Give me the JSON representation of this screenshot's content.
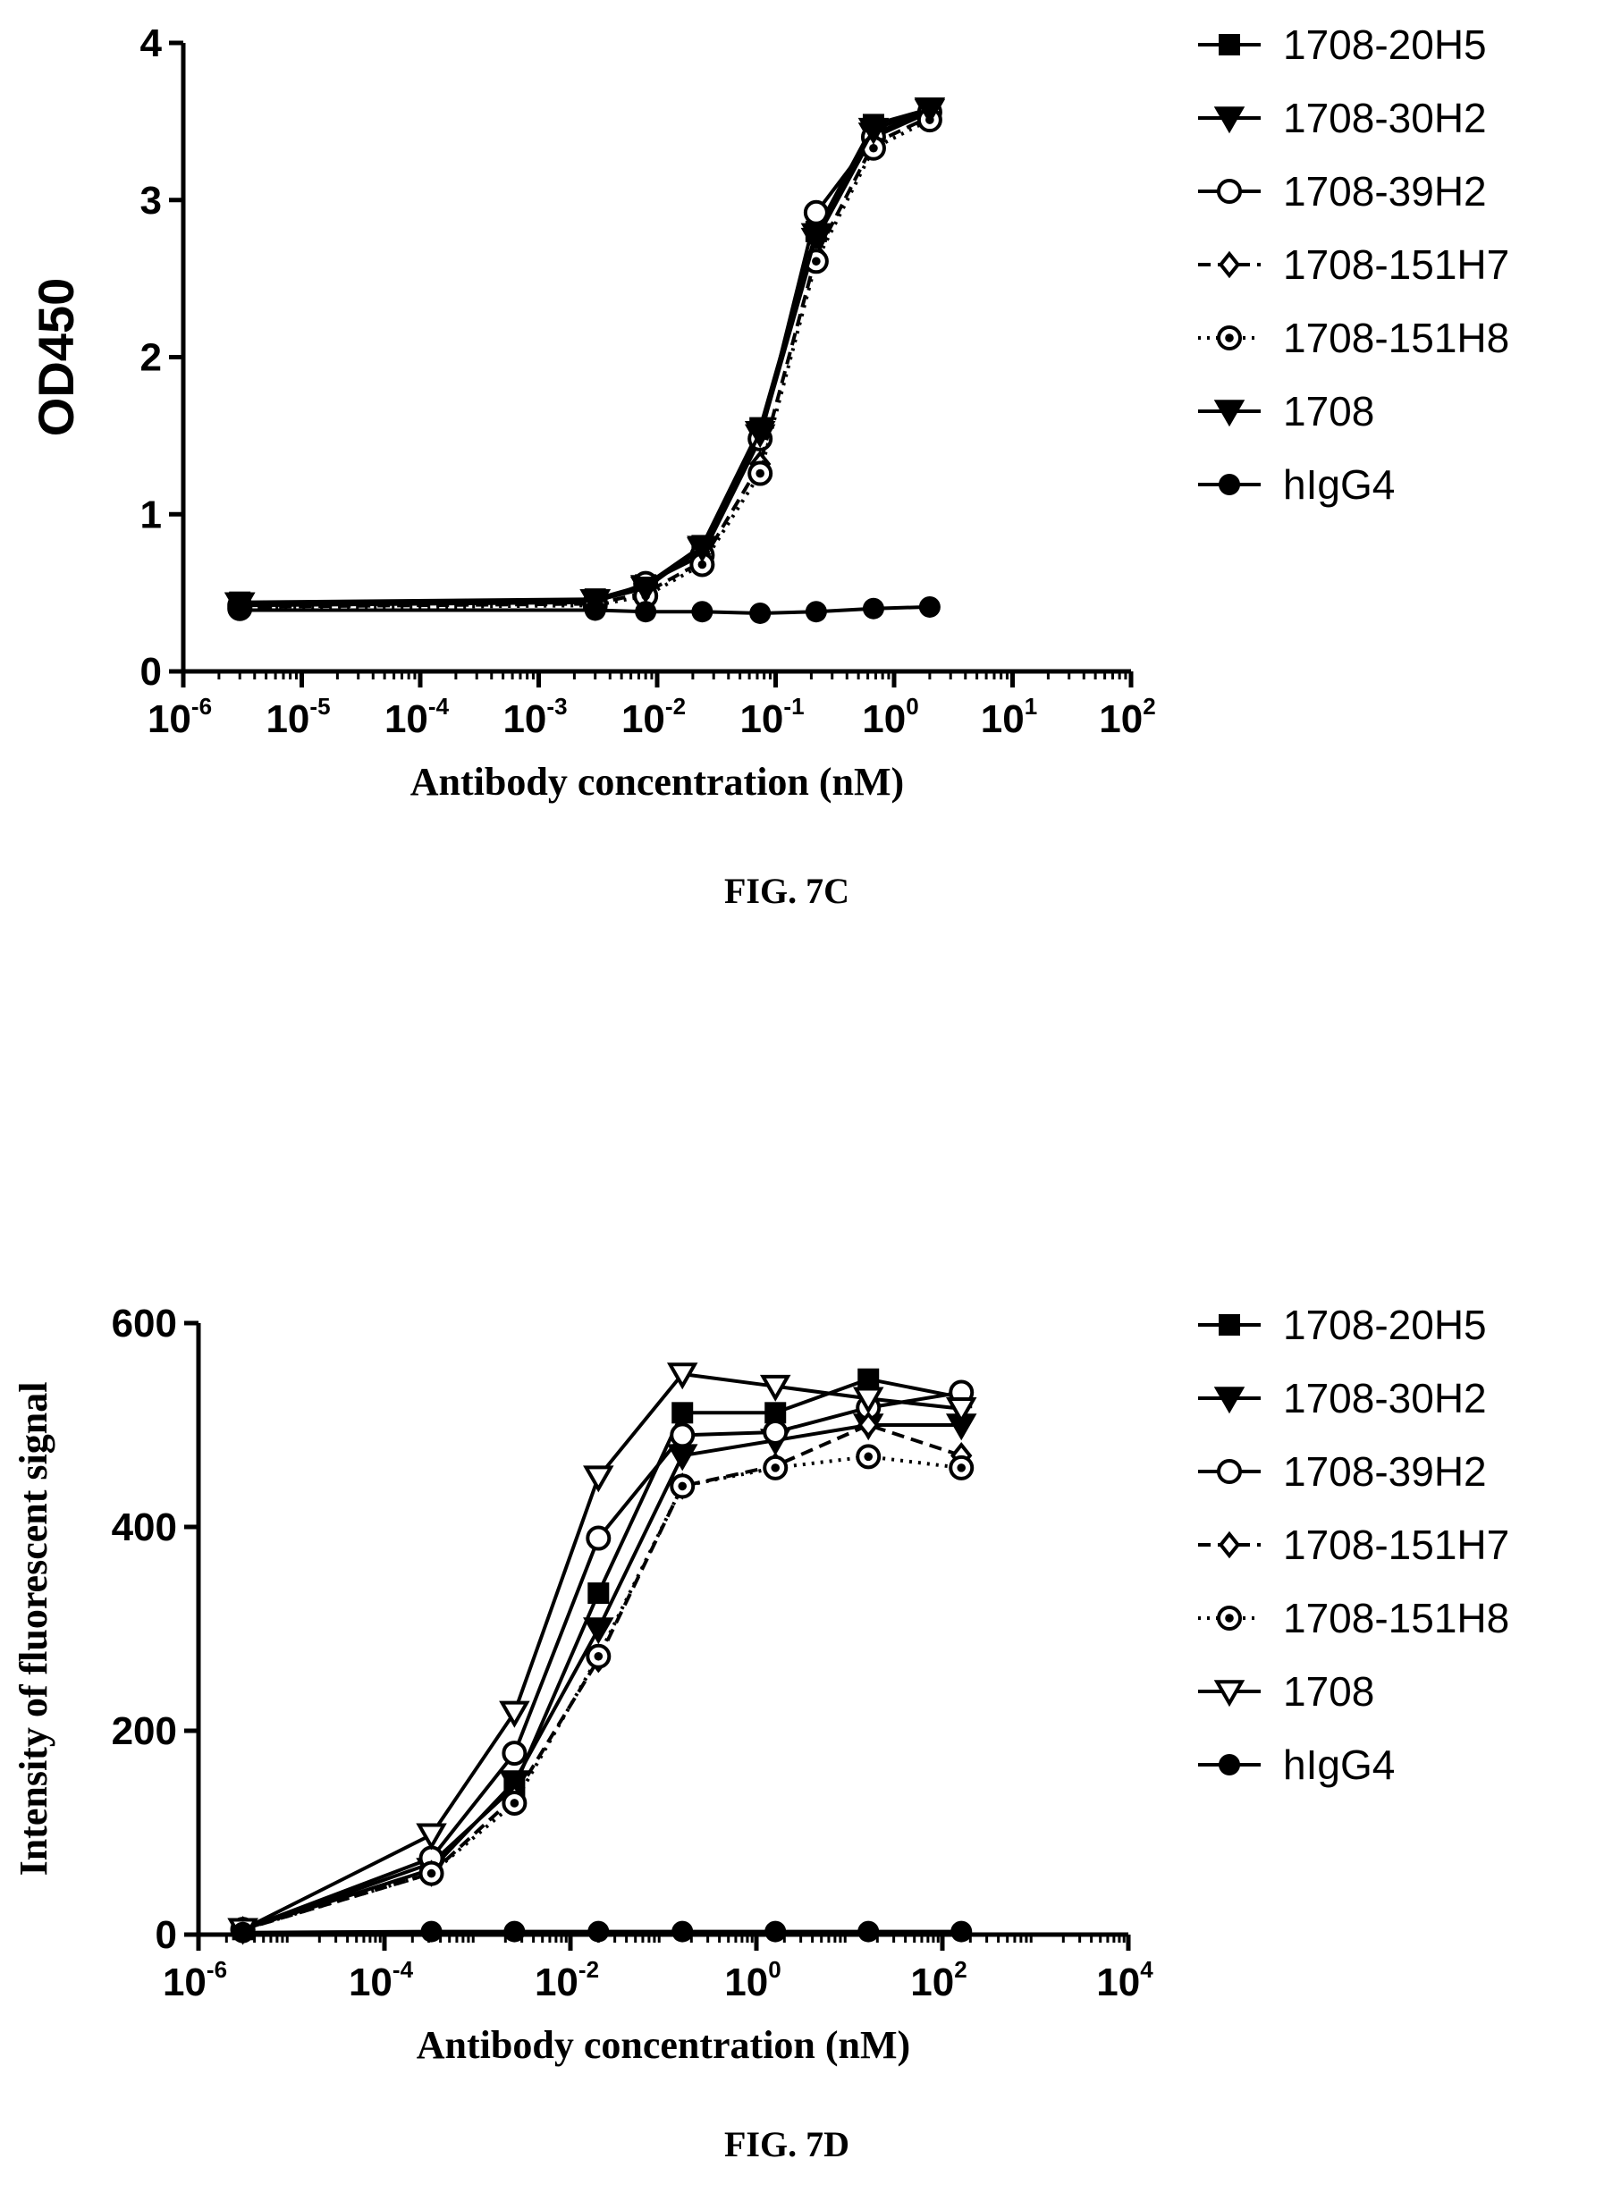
{
  "chart_data": [
    {
      "type": "line",
      "caption": "FIG. 7C",
      "xlabel": "Antibody concentration (nM)",
      "ylabel": "OD450",
      "xscale": "log",
      "xlim": [
        1e-06,
        100
      ],
      "ylim": [
        0,
        4
      ],
      "xticks": [
        {
          "base": "10",
          "exp": "-6"
        },
        {
          "base": "10",
          "exp": "-5"
        },
        {
          "base": "10",
          "exp": "-4"
        },
        {
          "base": "10",
          "exp": "-3"
        },
        {
          "base": "10",
          "exp": "-2"
        },
        {
          "base": "10",
          "exp": "-1"
        },
        {
          "base": "10",
          "exp": "0"
        },
        {
          "base": "10",
          "exp": "1"
        },
        {
          "base": "10",
          "exp": "2"
        }
      ],
      "yticks": [
        "0",
        "1",
        "2",
        "3",
        "4"
      ],
      "legend_position": "right",
      "grid": false,
      "series": [
        {
          "name": "1708-20H5",
          "marker": "square-filled",
          "line": "solid",
          "x": [
            3e-06,
            0.003,
            0.008,
            0.024,
            0.074,
            0.22,
            0.67,
            2.0
          ],
          "y": [
            0.44,
            0.46,
            0.55,
            0.8,
            1.55,
            2.8,
            3.48,
            3.58
          ]
        },
        {
          "name": "1708-30H2",
          "marker": "triangle-down-filled",
          "line": "solid",
          "x": [
            3e-06,
            0.003,
            0.008,
            0.024,
            0.074,
            0.22,
            0.67,
            2.0
          ],
          "y": [
            0.43,
            0.45,
            0.54,
            0.78,
            1.5,
            2.75,
            3.42,
            3.57
          ]
        },
        {
          "name": "1708-39H2",
          "marker": "circle-open",
          "line": "solid",
          "x": [
            3e-06,
            0.003,
            0.008,
            0.024,
            0.074,
            0.22,
            0.67,
            2.0
          ],
          "y": [
            0.42,
            0.44,
            0.56,
            0.74,
            1.48,
            2.92,
            3.4,
            3.56
          ]
        },
        {
          "name": "1708-151H7",
          "marker": "diamond-open",
          "line": "dashed",
          "x": [
            3e-06,
            0.003,
            0.008,
            0.024,
            0.074,
            0.22,
            0.67,
            2.0
          ],
          "y": [
            0.41,
            0.43,
            0.5,
            0.7,
            1.32,
            2.65,
            3.36,
            3.53
          ]
        },
        {
          "name": "1708-151H8",
          "marker": "circle-dotted",
          "line": "dotted",
          "x": [
            3e-06,
            0.003,
            0.008,
            0.024,
            0.074,
            0.22,
            0.67,
            2.0
          ],
          "y": [
            0.4,
            0.42,
            0.48,
            0.68,
            1.26,
            2.61,
            3.33,
            3.51
          ]
        },
        {
          "name": "1708",
          "marker": "triangle-down-filled",
          "line": "solid",
          "x": [
            3e-06,
            0.003,
            0.008,
            0.024,
            0.074,
            0.22,
            0.67,
            2.0
          ],
          "y": [
            0.43,
            0.45,
            0.53,
            0.79,
            1.52,
            2.78,
            3.45,
            3.58
          ]
        },
        {
          "name": "hIgG4",
          "marker": "circle-filled",
          "line": "solid",
          "x": [
            3e-06,
            0.003,
            0.008,
            0.024,
            0.074,
            0.22,
            0.67,
            2.0
          ],
          "y": [
            0.39,
            0.39,
            0.38,
            0.38,
            0.37,
            0.38,
            0.4,
            0.41
          ]
        }
      ]
    },
    {
      "type": "line",
      "caption": "FIG. 7D",
      "xlabel": "Antibody concentration (nM)",
      "ylabel": "Intensity of fluorescent signal",
      "xscale": "log",
      "xlim": [
        1e-06,
        10000
      ],
      "ylim": [
        0,
        600
      ],
      "xticks": [
        {
          "base": "10",
          "exp": "-6"
        },
        {
          "base": "10",
          "exp": "-4"
        },
        {
          "base": "10",
          "exp": "-2"
        },
        {
          "base": "10",
          "exp": "0"
        },
        {
          "base": "10",
          "exp": "2"
        },
        {
          "base": "10",
          "exp": "4"
        }
      ],
      "yticks": [
        "0",
        "200",
        "400",
        "600"
      ],
      "legend_position": "right",
      "grid": false,
      "series": [
        {
          "name": "1708-20H5",
          "marker": "square-filled",
          "line": "solid",
          "x": [
            3e-06,
            0.00032,
            0.0025,
            0.02,
            0.16,
            1.6,
            16,
            160
          ],
          "y": [
            5,
            70,
            145,
            335,
            512,
            512,
            545,
            527
          ]
        },
        {
          "name": "1708-30H2",
          "marker": "triangle-down-filled",
          "line": "solid",
          "x": [
            3e-06,
            0.00032,
            0.0025,
            0.02,
            0.16,
            1.6,
            16,
            160
          ],
          "y": [
            5,
            64,
            150,
            300,
            470,
            485,
            500,
            500
          ]
        },
        {
          "name": "1708-39H2",
          "marker": "circle-open",
          "line": "solid",
          "x": [
            3e-06,
            0.00032,
            0.0025,
            0.02,
            0.16,
            1.6,
            16,
            160
          ],
          "y": [
            5,
            75,
            178,
            389,
            490,
            493,
            517,
            532
          ]
        },
        {
          "name": "1708-151H7",
          "marker": "diamond-open",
          "line": "dashed",
          "x": [
            3e-06,
            0.00032,
            0.0025,
            0.02,
            0.16,
            1.6,
            16,
            160
          ],
          "y": [
            5,
            60,
            135,
            270,
            440,
            460,
            500,
            470
          ]
        },
        {
          "name": "1708-151H8",
          "marker": "circle-dotted",
          "line": "dotted",
          "x": [
            3e-06,
            0.00032,
            0.0025,
            0.02,
            0.16,
            1.6,
            16,
            160
          ],
          "y": [
            5,
            60,
            129,
            273,
            440,
            458,
            469,
            458
          ]
        },
        {
          "name": "1708",
          "marker": "triangle-down-open",
          "line": "solid",
          "x": [
            3e-06,
            0.00032,
            0.0025,
            0.02,
            0.16,
            1.6,
            16,
            160
          ],
          "y": [
            5,
            98,
            218,
            449,
            550,
            538,
            526,
            516
          ]
        },
        {
          "name": "hIgG4",
          "marker": "circle-filled",
          "line": "solid",
          "x": [
            3e-06,
            0.00032,
            0.0025,
            0.02,
            0.16,
            1.6,
            16,
            160
          ],
          "y": [
            2,
            3,
            3,
            3,
            3,
            3,
            3,
            3
          ]
        }
      ]
    }
  ]
}
